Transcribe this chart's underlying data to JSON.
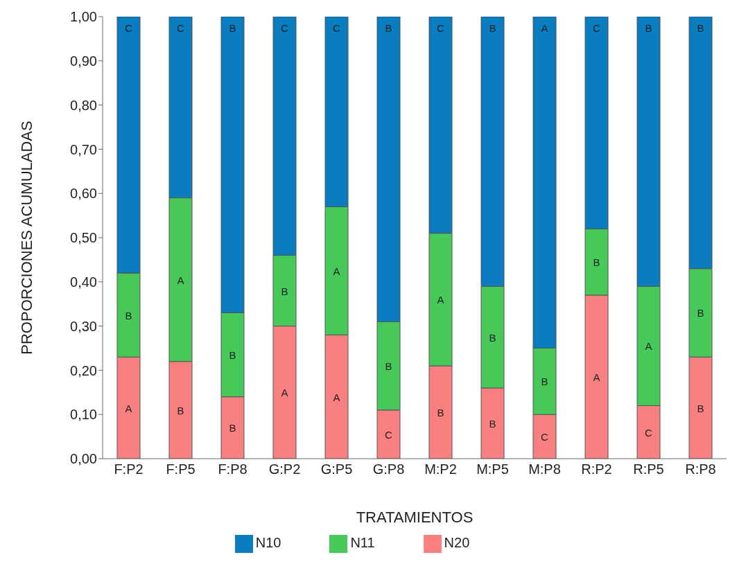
{
  "chart_data": {
    "type": "bar",
    "stacked": true,
    "xlabel": "TRATAMIENTOS",
    "ylabel": "PROPORCIONES ACUMULADAS",
    "categories": [
      "F:P2",
      "F:P5",
      "F:P8",
      "G:P2",
      "G:P5",
      "G:P8",
      "M:P2",
      "M:P5",
      "M:P8",
      "R:P2",
      "R:P5",
      "R:P8"
    ],
    "series": [
      {
        "name": "N20",
        "color": "#f88080",
        "values": [
          0.23,
          0.22,
          0.14,
          0.3,
          0.28,
          0.11,
          0.21,
          0.16,
          0.1,
          0.37,
          0.12,
          0.23
        ],
        "value_labels": [
          "A",
          "B",
          "B",
          "A",
          "A",
          "C",
          "B",
          "B",
          "C",
          "A",
          "C",
          "B"
        ]
      },
      {
        "name": "N11",
        "color": "#47c95a",
        "values": [
          0.19,
          0.37,
          0.19,
          0.16,
          0.29,
          0.2,
          0.3,
          0.23,
          0.15,
          0.15,
          0.27,
          0.2
        ],
        "value_labels": [
          "B",
          "A",
          "B",
          "B",
          "A",
          "B",
          "A",
          "B",
          "B",
          "B",
          "A",
          "B"
        ]
      },
      {
        "name": "N10",
        "color": "#0a7dc1",
        "values": [
          0.58,
          0.41,
          0.67,
          0.54,
          0.43,
          0.69,
          0.49,
          0.61,
          0.75,
          0.48,
          0.61,
          0.57
        ],
        "value_labels": [
          "C",
          "C",
          "B",
          "C",
          "C",
          "B",
          "C",
          "B",
          "A",
          "C",
          "B",
          "B"
        ]
      }
    ],
    "ylim": [
      0,
      1
    ],
    "yticks": [
      {
        "value": 0,
        "label": "0,00"
      },
      {
        "value": 0.1,
        "label": "0,10"
      },
      {
        "value": 0.2,
        "label": "0,20"
      },
      {
        "value": 0.3,
        "label": "0,30"
      },
      {
        "value": 0.4,
        "label": "0,40"
      },
      {
        "value": 0.5,
        "label": "0,50"
      },
      {
        "value": 0.6,
        "label": "0,60"
      },
      {
        "value": 0.7,
        "label": "0,70"
      },
      {
        "value": 0.8,
        "label": "0,80"
      },
      {
        "value": 0.9,
        "label": "0,90"
      },
      {
        "value": 1,
        "label": "1,00"
      }
    ],
    "grid": false,
    "legend": "bottom"
  }
}
